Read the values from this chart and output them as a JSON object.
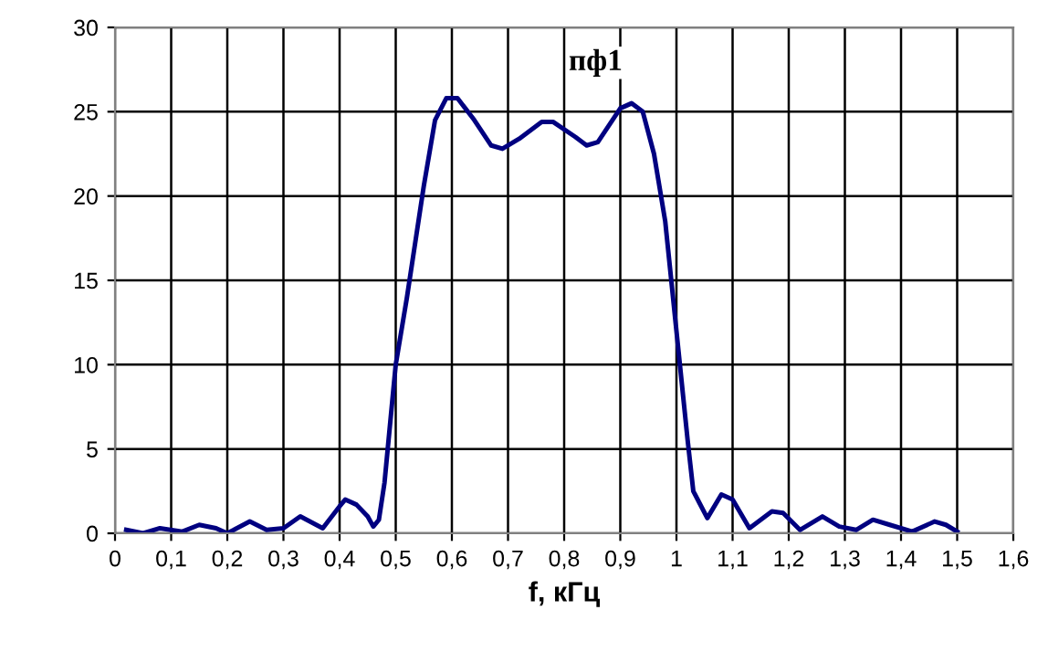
{
  "chart_data": {
    "type": "line",
    "title": "пф1",
    "xlabel": "f, кГц",
    "series": [
      {
        "color": "#000080",
        "x": [
          0.02,
          0.05,
          0.08,
          0.12,
          0.15,
          0.18,
          0.2,
          0.24,
          0.27,
          0.3,
          0.33,
          0.37,
          0.4,
          0.41,
          0.43,
          0.45,
          0.46,
          0.47,
          0.48,
          0.5,
          0.52,
          0.55,
          0.57,
          0.59,
          0.61,
          0.64,
          0.67,
          0.69,
          0.72,
          0.76,
          0.78,
          0.82,
          0.84,
          0.86,
          0.9,
          0.92,
          0.94,
          0.96,
          0.98,
          1.0,
          1.02,
          1.03,
          1.055,
          1.08,
          1.1,
          1.13,
          1.17,
          1.19,
          1.22,
          1.26,
          1.29,
          1.32,
          1.35,
          1.38,
          1.42,
          1.46,
          1.48,
          1.5
        ],
        "values": [
          0.2,
          0.0,
          0.3,
          0.1,
          0.5,
          0.3,
          0.0,
          0.7,
          0.2,
          0.3,
          1.0,
          0.3,
          1.6,
          2.0,
          1.7,
          1.0,
          0.4,
          0.8,
          3.0,
          10.0,
          14.0,
          20.6,
          24.5,
          25.8,
          25.8,
          24.5,
          23.0,
          22.8,
          23.4,
          24.4,
          24.4,
          23.5,
          23.0,
          23.2,
          25.2,
          25.5,
          25.0,
          22.5,
          18.5,
          12.0,
          5.5,
          2.5,
          0.9,
          2.3,
          2.0,
          0.3,
          1.3,
          1.2,
          0.2,
          1.0,
          0.4,
          0.2,
          0.8,
          0.5,
          0.1,
          0.7,
          0.5,
          0.1
        ]
      }
    ],
    "xlim": [
      0,
      1.6
    ],
    "ylim": [
      0,
      30
    ],
    "xticks": [
      0,
      {
        "value": 0.1,
        "label": "0,1"
      },
      {
        "value": 0.2,
        "label": "0,2"
      },
      {
        "value": 0.3,
        "label": "0,3"
      },
      {
        "value": 0.4,
        "label": "0,4"
      },
      {
        "value": 0.5,
        "label": "0,5"
      },
      {
        "value": 0.6,
        "label": "0,6"
      },
      {
        "value": 0.7,
        "label": "0,7"
      },
      {
        "value": 0.8,
        "label": "0,8"
      },
      {
        "value": 0.9,
        "label": "0,9"
      },
      1,
      {
        "value": 1.1,
        "label": "1,1"
      },
      {
        "value": 1.2,
        "label": "1,2"
      },
      {
        "value": 1.3,
        "label": "1,3"
      },
      {
        "value": 1.4,
        "label": "1,4"
      },
      {
        "value": 1.5,
        "label": "1,5"
      },
      {
        "value": 1.6,
        "label": "1,6"
      }
    ],
    "yticks": [
      0,
      5,
      10,
      15,
      20,
      25,
      30
    ],
    "grid": true,
    "marker": "none",
    "line_style": "solid"
  }
}
